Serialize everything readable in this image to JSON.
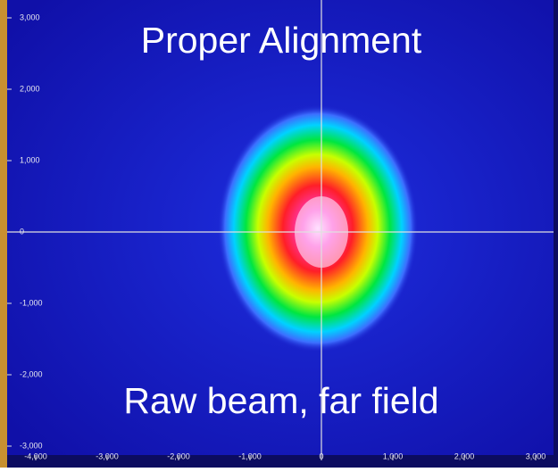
{
  "chart_data": {
    "type": "beam-profile",
    "title": "Proper Alignment",
    "caption": "Raw beam, far field",
    "xlim": [
      -4400,
      3250
    ],
    "ylim": [
      -3125,
      3250
    ],
    "xticks": [
      {
        "value": -4000,
        "label": "-4,000"
      },
      {
        "value": -3000,
        "label": "-3,000"
      },
      {
        "value": -2000,
        "label": "-2,000"
      },
      {
        "value": -1000,
        "label": "-1,000"
      },
      0,
      {
        "value": 1000,
        "label": "1,000"
      },
      {
        "value": 2000,
        "label": "2,000"
      },
      {
        "value": 3000,
        "label": "3,000"
      }
    ],
    "yticks": [
      {
        "value": 3000,
        "label": "3,000"
      },
      {
        "value": 2000,
        "label": "2,000"
      },
      {
        "value": 1000,
        "label": "1,000"
      },
      0,
      {
        "value": -1000,
        "label": "-1,000"
      },
      {
        "value": -2000,
        "label": "-2,000"
      },
      {
        "value": -3000,
        "label": "-3,000"
      }
    ],
    "crosshair": true
  }
}
